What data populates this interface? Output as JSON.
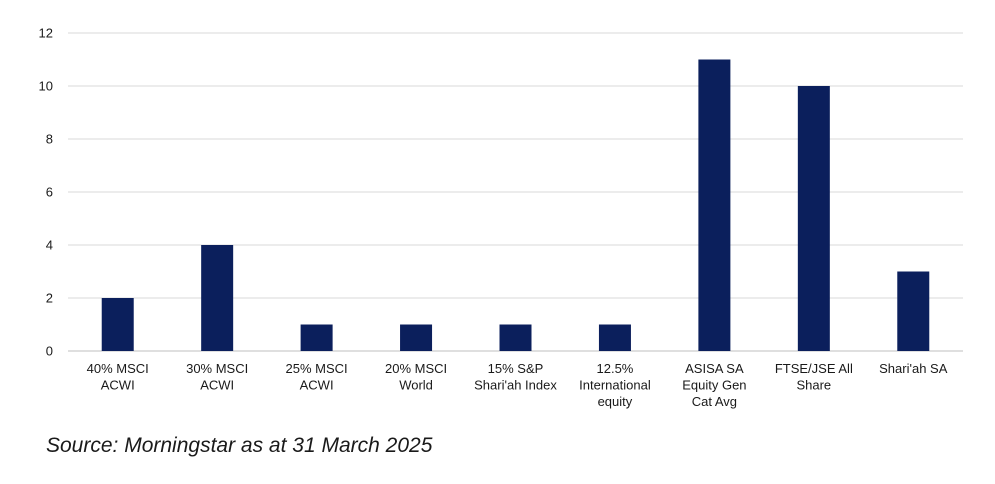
{
  "chart_data": {
    "type": "bar",
    "categories": [
      [
        "40% MSCI",
        "ACWI"
      ],
      [
        "30% MSCI",
        "ACWI"
      ],
      [
        "25% MSCI",
        "ACWI"
      ],
      [
        "20% MSCI",
        "World"
      ],
      [
        "15% S&P",
        "Shari'ah Index"
      ],
      [
        "12.5%",
        "International",
        "equity"
      ],
      [
        "ASISA SA",
        "Equity Gen",
        "Cat Avg"
      ],
      [
        "FTSE/JSE All",
        "Share"
      ],
      [
        "Shari'ah SA"
      ]
    ],
    "values": [
      2,
      4,
      1,
      1,
      1,
      1,
      11,
      10,
      3
    ],
    "ylim": [
      0,
      12
    ],
    "yticks": [
      0,
      2,
      4,
      6,
      8,
      10,
      12
    ],
    "grid": true,
    "bar_color": "#0b1f5c",
    "grid_color": "#d9d9d9",
    "axis_color": "#bfbfbf"
  },
  "source": "Source: Morningstar as at 31 March 2025"
}
